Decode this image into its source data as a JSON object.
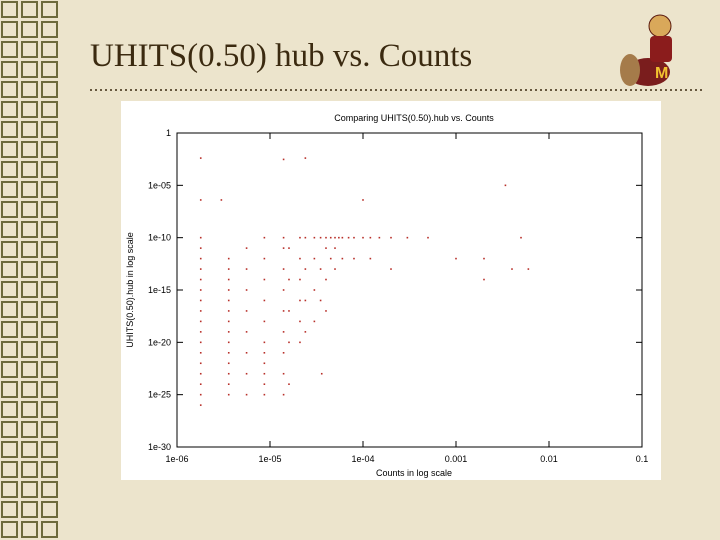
{
  "title": "UHITS(0.50) hub vs. Counts",
  "chart_data": {
    "type": "scatter",
    "title": "Comparing UHITS(0.50).hub vs. Counts",
    "x_label": "Counts in log scale",
    "y_label": "UHITS(0.50).hub in log scale",
    "xscale": "log",
    "yscale": "log",
    "grid": false,
    "color": "#b8302a",
    "xlim": [
      1e-06,
      0.1
    ],
    "ylim": [
      1e-30,
      1
    ],
    "xticks": [
      {
        "value": 1e-06,
        "label": "1e-06"
      },
      {
        "value": 1e-05,
        "label": "1e-05"
      },
      {
        "value": 0.0001,
        "label": "1e-04"
      },
      0.001,
      0.01,
      0.1
    ],
    "yticks": [
      1,
      {
        "value": 1e-05,
        "label": "1e-05"
      },
      1e-10,
      1e-15,
      1e-20,
      1e-25,
      1e-30
    ],
    "x": [
      1.8e-06,
      1.8e-06,
      1.8e-06,
      1.8e-06,
      1.8e-06,
      1.8e-06,
      1.8e-06,
      1.8e-06,
      1.8e-06,
      1.8e-06,
      1.8e-06,
      1.8e-06,
      1.8e-06,
      1.8e-06,
      1.8e-06,
      1.8e-06,
      1.8e-06,
      1.8e-06,
      1.8e-06,
      3.6e-06,
      3.6e-06,
      3.6e-06,
      3.6e-06,
      3.6e-06,
      3.6e-06,
      3.6e-06,
      3.6e-06,
      3.6e-06,
      3.6e-06,
      3.6e-06,
      3.6e-06,
      3.6e-06,
      3.6e-06,
      5.6e-06,
      5.6e-06,
      5.6e-06,
      5.6e-06,
      5.6e-06,
      5.6e-06,
      5.6e-06,
      5.6e-06,
      8.7e-06,
      8.7e-06,
      8.7e-06,
      8.7e-06,
      8.7e-06,
      8.7e-06,
      8.7e-06,
      8.7e-06,
      8.7e-06,
      8.7e-06,
      8.7e-06,
      1.4e-05,
      1.4e-05,
      1.4e-05,
      1.4e-05,
      1.4e-05,
      1.4e-05,
      1.4e-05,
      1.4e-05,
      1.4e-05,
      1.4e-05,
      1.6e-05,
      1.6e-05,
      1.6e-05,
      1.6e-05,
      1.6e-05,
      2.1e-05,
      2.1e-05,
      2.1e-05,
      2.1e-05,
      2.1e-05,
      2.1e-05,
      2.4e-05,
      2.4e-05,
      2.4e-05,
      2.4e-05,
      2.4e-05,
      3e-05,
      3e-05,
      3e-05,
      3e-05,
      3.5e-05,
      3.5e-05,
      3.5e-05,
      4e-05,
      4e-05,
      4e-05,
      4e-05,
      4.5e-05,
      4.5e-05,
      5e-05,
      5e-05,
      5e-05,
      5.5e-05,
      6e-05,
      6e-05,
      3.6e-05,
      7e-05,
      8e-05,
      8e-05,
      0.0001,
      0.00012,
      0.00015,
      0.00012,
      0.0002,
      0.0002,
      0.0003,
      0.0005,
      0.0001,
      0.0034,
      0.005,
      0.001,
      0.002,
      0.004,
      0.002,
      0.006,
      3e-06
    ],
    "values": [
      0.004,
      4e-07,
      1e-10,
      1e-11,
      1e-12,
      1e-13,
      1e-14,
      1e-15,
      1e-16,
      1e-17,
      1e-18,
      1e-19,
      1e-20,
      1e-21,
      1e-22,
      1e-23,
      1e-24,
      1e-25,
      1e-26,
      1e-12,
      1e-13,
      1e-14,
      1e-15,
      1e-16,
      1e-17,
      1e-18,
      1e-19,
      1e-20,
      1e-21,
      1e-22,
      1e-23,
      1e-24,
      1e-25,
      1e-11,
      1e-13,
      1e-15,
      1e-17,
      1e-19,
      1e-21,
      1e-23,
      1e-25,
      1e-10,
      1e-12,
      1e-14,
      1e-16,
      1e-18,
      1e-20,
      1e-21,
      1e-22,
      1e-23,
      1e-24,
      1e-25,
      1e-10,
      1e-11,
      1e-13,
      1e-15,
      1e-17,
      1e-19,
      1e-21,
      1e-23,
      1e-25,
      0.003,
      1e-11,
      1e-14,
      1e-17,
      1e-20,
      1e-24,
      1e-10,
      1e-12,
      1e-14,
      1e-16,
      1e-18,
      1e-20,
      0.004,
      1e-10,
      1e-13,
      1e-16,
      1e-19,
      1e-10,
      1e-12,
      1e-15,
      1e-18,
      1e-10,
      1e-13,
      1e-16,
      1e-10,
      1e-11,
      1e-14,
      1e-17,
      1e-10,
      1e-12,
      1e-10,
      1e-11,
      1e-13,
      1e-10,
      1e-10,
      1e-12,
      1e-23,
      1e-10,
      1e-10,
      1e-12,
      1e-10,
      1e-10,
      1e-10,
      1e-12,
      1e-10,
      1e-13,
      1e-10,
      1e-10,
      4e-07,
      1e-05,
      1e-10,
      1e-12,
      1e-12,
      1e-13,
      1e-14,
      1e-13,
      4e-07
    ]
  }
}
